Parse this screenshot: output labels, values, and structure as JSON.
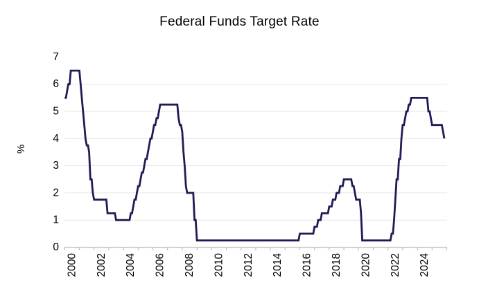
{
  "chart": {
    "title": "Federal Funds Target Rate",
    "background": "#ffffff",
    "line_color": "#1e1c55",
    "gridline_color": "#e6e6e6",
    "axis_color": "#bfbfbf",
    "text_color": "#000000",
    "y_axis": {
      "label": "%",
      "ticks": [
        "0",
        "1",
        "2",
        "3",
        "4",
        "5",
        "6",
        "7"
      ],
      "min": 0,
      "max": 7
    },
    "x_axis": {
      "labels": [
        "2000",
        "2002",
        "2004",
        "2006",
        "2008",
        "2010",
        "2012",
        "2014",
        "2016",
        "2018",
        "2020",
        "2022",
        "2024"
      ],
      "label_interval_years": 2,
      "tick_interval_years": 1,
      "first_tick_year": 2000,
      "last_tick_year": 2026
    }
  },
  "chart_data": {
    "type": "line",
    "step": true,
    "title": "Federal Funds Target Rate",
    "ylabel": "%",
    "ylim": [
      0,
      7
    ],
    "x_tick_labels": [
      "2000",
      "2002",
      "2004",
      "2006",
      "2008",
      "2010",
      "2012",
      "2014",
      "2016",
      "2018",
      "2020",
      "2022",
      "2024"
    ],
    "series_name": "Federal Funds Target Rate (%)",
    "x_start": 2000.0,
    "x_end": 2025.83,
    "rate_change_points": [
      [
        1999.0,
        5.5
      ],
      [
        2000.09,
        5.75
      ],
      [
        2000.22,
        6.0
      ],
      [
        2000.38,
        6.5
      ],
      [
        2001.01,
        6.0
      ],
      [
        2001.09,
        5.5
      ],
      [
        2001.22,
        5.0
      ],
      [
        2001.3,
        4.5
      ],
      [
        2001.37,
        4.0
      ],
      [
        2001.49,
        3.75
      ],
      [
        2001.64,
        3.5
      ],
      [
        2001.71,
        3.0
      ],
      [
        2001.75,
        2.5
      ],
      [
        2001.85,
        2.0
      ],
      [
        2001.94,
        1.75
      ],
      [
        2002.85,
        1.25
      ],
      [
        2003.48,
        1.0
      ],
      [
        2004.5,
        1.25
      ],
      [
        2004.61,
        1.5
      ],
      [
        2004.72,
        1.75
      ],
      [
        2004.86,
        2.0
      ],
      [
        2004.95,
        2.25
      ],
      [
        2005.09,
        2.5
      ],
      [
        2005.22,
        2.75
      ],
      [
        2005.34,
        3.0
      ],
      [
        2005.49,
        3.25
      ],
      [
        2005.6,
        3.5
      ],
      [
        2005.72,
        3.75
      ],
      [
        2005.83,
        4.0
      ],
      [
        2005.95,
        4.25
      ],
      [
        2006.08,
        4.5
      ],
      [
        2006.24,
        4.75
      ],
      [
        2006.36,
        5.0
      ],
      [
        2006.49,
        5.25
      ],
      [
        2007.71,
        4.75
      ],
      [
        2007.83,
        4.5
      ],
      [
        2007.94,
        4.25
      ],
      [
        2008.05,
        3.5
      ],
      [
        2008.09,
        3.0
      ],
      [
        2008.21,
        2.25
      ],
      [
        2008.33,
        2.0
      ],
      [
        2008.77,
        1.5
      ],
      [
        2008.83,
        1.0
      ],
      [
        2008.96,
        0.25
      ],
      [
        2015.96,
        0.5
      ],
      [
        2016.95,
        0.75
      ],
      [
        2017.2,
        1.0
      ],
      [
        2017.45,
        1.25
      ],
      [
        2017.95,
        1.5
      ],
      [
        2018.22,
        1.75
      ],
      [
        2018.45,
        2.0
      ],
      [
        2018.74,
        2.25
      ],
      [
        2018.97,
        2.5
      ],
      [
        2019.58,
        2.25
      ],
      [
        2019.71,
        2.0
      ],
      [
        2019.83,
        1.75
      ],
      [
        2020.16,
        1.25
      ],
      [
        2020.21,
        0.25
      ],
      [
        2022.21,
        0.5
      ],
      [
        2022.34,
        1.0
      ],
      [
        2022.45,
        1.75
      ],
      [
        2022.57,
        2.5
      ],
      [
        2022.72,
        3.25
      ],
      [
        2022.84,
        4.0
      ],
      [
        2022.95,
        4.5
      ],
      [
        2023.09,
        4.75
      ],
      [
        2023.22,
        5.0
      ],
      [
        2023.34,
        5.25
      ],
      [
        2023.57,
        5.5
      ],
      [
        2024.72,
        5.0
      ],
      [
        2024.85,
        4.75
      ],
      [
        2024.96,
        4.5
      ],
      [
        2025.71,
        4.25
      ],
      [
        2025.83,
        4.0
      ]
    ]
  }
}
